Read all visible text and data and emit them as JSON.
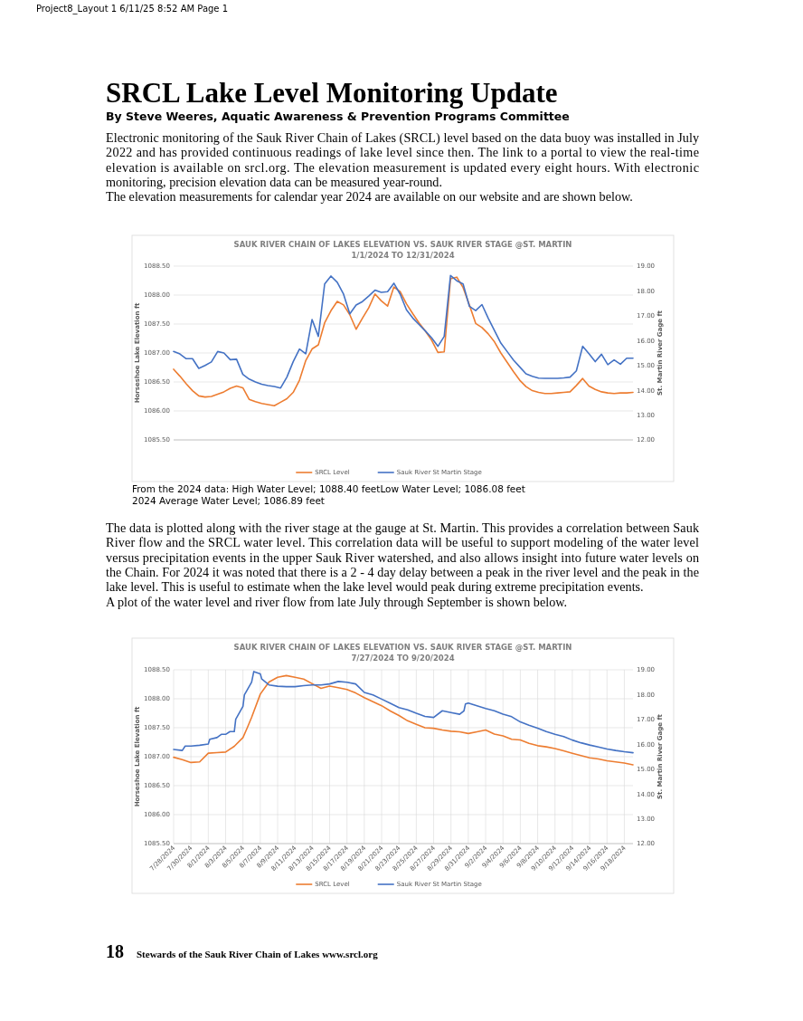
{
  "chart_data": [
    {
      "type": "other",
      "annotations": [
        "Project8_Layout 1 6/11/25 8:52 AM Page 1"
      ]
    },
    {
      "type": "other",
      "title": "SRCL Lake Level Monitoring Update",
      "subtitle": "By Steve Weeres, Aquatic Awareness & Prevention Programs Committee",
      "annotations": [
        "Electronic monitoring of the Sauk River Chain of Lakes (SRCL) level based on the data buoy was installed in July 2022 and has provided continuous readings of lake level since then. The link to a portal to view the real-time elevation is available on srcl.org. The elevation measurement is updated every eight hours. With electronic monitoring, precision elevation data can be measured year-round.",
        "The elevation measurements for calendar year 2024 are available on our website and are shown below."
      ]
    },
    {
      "type": "line",
      "title": "SAUK RIVER CHAIN OF LAKES ELEVATION VS. SAUK RIVER STAGE @ST. MARTIN",
      "subtitle": "1/1/2024 TO 12/31/2024",
      "ylabel": "Horseshoe Lake Elevation ft",
      "y2label": "St. Martin River Gage ft",
      "ylim": [
        1085.5,
        1088.5
      ],
      "yticks": [
        {
          "value": 1085.5,
          "label": "1085.50"
        },
        {
          "value": 1086,
          "label": "1086.00"
        },
        {
          "value": 1086.5,
          "label": "1086.50"
        },
        {
          "value": 1087,
          "label": "1087.00"
        },
        {
          "value": 1087.5,
          "label": "1087.50"
        },
        {
          "value": 1088,
          "label": "1088.00"
        },
        {
          "value": 1088.5,
          "label": "1088.50"
        }
      ],
      "y2lim": [
        12,
        19
      ],
      "y2ticks": [
        {
          "value": 12,
          "label": "12.00"
        },
        {
          "value": 13,
          "label": "13.00"
        },
        {
          "value": 14,
          "label": "14.00"
        },
        {
          "value": 15,
          "label": "15.00"
        },
        {
          "value": 16,
          "label": "16.00"
        },
        {
          "value": 17,
          "label": "17.00"
        },
        {
          "value": 18,
          "label": "18.00"
        },
        {
          "value": 19,
          "label": "19.00"
        }
      ],
      "grid": "y",
      "legend": "bottom",
      "annotations": [
        "From the 2024 data: High Water Level; 1088.40 feetLow Water Level; 1086.08 feet",
        "2024 Average Water Level; 1086.89 feet"
      ],
      "categories": [
        null,
        null,
        null,
        null,
        null,
        null,
        null,
        null,
        null,
        null,
        null,
        null,
        null,
        null,
        null,
        null,
        null,
        null,
        null,
        null,
        null,
        null,
        null,
        null,
        null,
        null,
        null,
        null,
        null,
        null,
        null,
        null,
        null,
        null,
        null,
        null,
        null,
        null,
        null,
        null,
        null,
        null,
        null,
        null,
        null,
        null,
        null,
        null,
        null,
        null,
        null,
        null,
        null,
        null,
        null,
        null,
        null,
        null,
        null,
        null,
        null,
        null,
        null,
        null,
        null,
        null,
        null,
        null,
        null,
        null,
        null,
        null,
        null,
        null
      ],
      "series": [
        {
          "name": "SRCL Level",
          "color": "#ed7d31",
          "values": [
            1086.72,
            1086.6,
            1086.47,
            1086.35,
            1086.26,
            1086.24,
            1086.25,
            1086.29,
            1086.33,
            1086.39,
            1086.43,
            1086.4,
            1086.2,
            1086.16,
            1086.13,
            1086.11,
            1086.09,
            1086.15,
            1086.21,
            1086.32,
            1086.53,
            1086.87,
            1087.07,
            1087.14,
            1087.52,
            1087.73,
            1087.89,
            1087.83,
            1087.66,
            1087.41,
            1087.6,
            1087.78,
            1088.02,
            1087.9,
            1087.81,
            1088.14,
            1088.06,
            1087.85,
            1087.68,
            1087.52,
            1087.38,
            1087.22,
            1087.01,
            1087.02,
            1088.28,
            1088.31,
            1088.13,
            1087.83,
            1087.51,
            1087.44,
            1087.33,
            1087.19,
            1087,
            1086.84,
            1086.68,
            1086.53,
            1086.42,
            1086.35,
            1086.32,
            1086.3,
            1086.3,
            1086.31,
            1086.32,
            1086.33,
            1086.44,
            1086.56,
            1086.43,
            1086.37,
            1086.33,
            1086.31,
            1086.3,
            1086.31,
            1086.31,
            1086.32
          ]
        },
        {
          "name": "Sauk River St Martin Stage",
          "color": "#4472c4",
          "axis": "y2",
          "values": [
            15.56,
            15.46,
            15.27,
            15.27,
            14.88,
            15,
            15.14,
            15.56,
            15.5,
            15.23,
            15.25,
            14.64,
            14.45,
            14.33,
            14.24,
            14.19,
            14.15,
            14.09,
            14.53,
            15.15,
            15.66,
            15.47,
            16.85,
            16.17,
            18.28,
            18.6,
            18.35,
            17.87,
            17.08,
            17.43,
            17.57,
            17.79,
            18.03,
            17.94,
            17.97,
            18.31,
            17.87,
            17.24,
            16.91,
            16.65,
            16.39,
            16.11,
            15.77,
            16.17,
            18.62,
            18.41,
            18.28,
            17.38,
            17.21,
            17.45,
            16.9,
            16.4,
            15.9,
            15.56,
            15.22,
            14.94,
            14.66,
            14.56,
            14.49,
            14.48,
            14.48,
            14.48,
            14.5,
            14.53,
            14.78,
            15.77,
            15.47,
            15.15,
            15.45,
            15.03,
            15.22,
            15.05,
            15.29,
            15.29
          ]
        }
      ]
    },
    {
      "type": "other",
      "annotations": [
        "The data is plotted along with the river stage at the gauge at St. Martin. This provides a correlation between Sauk River flow and the SRCL water level. This correlation data will be useful to support modeling of the water level versus precipitation events in the upper Sauk River watershed, and also allows insight into future water levels on the Chain. For 2024 it was noted that there is a 2 - 4 day delay between a peak in the river level and the peak in the lake level. This is useful to estimate when the lake level would peak during extreme precipitation events.",
        "A plot of the water level and river flow from late July through September is shown below."
      ]
    },
    {
      "type": "line",
      "title": "SAUK RIVER CHAIN OF LAKES ELEVATION VS. SAUK RIVER STAGE @ST. MARTIN",
      "subtitle": "7/27/2024 TO 9/20/2024",
      "ylabel": "Horseshoe Lake Elevation ft",
      "y2label": "St. Martin River Gage ft",
      "xlim": [
        "2024-07-28",
        "2024-09-19"
      ],
      "xticks": [
        {
          "value": "2024-07-28",
          "label": "7/28/2024"
        },
        {
          "value": "2024-07-30",
          "label": "7/30/2024"
        },
        {
          "value": "2024-08-01",
          "label": "8/1/2024"
        },
        {
          "value": "2024-08-03",
          "label": "8/3/2024"
        },
        {
          "value": "2024-08-05",
          "label": "8/5/2024"
        },
        {
          "value": "2024-08-07",
          "label": "8/7/2024"
        },
        {
          "value": "2024-08-09",
          "label": "8/9/2024"
        },
        {
          "value": "2024-08-11",
          "label": "8/11/2024"
        },
        {
          "value": "2024-08-13",
          "label": "8/13/2024"
        },
        {
          "value": "2024-08-15",
          "label": "8/15/2024"
        },
        {
          "value": "2024-08-17",
          "label": "8/17/2024"
        },
        {
          "value": "2024-08-19",
          "label": "8/19/2024"
        },
        {
          "value": "2024-08-21",
          "label": "8/21/2024"
        },
        {
          "value": "2024-08-23",
          "label": "8/23/2024"
        },
        {
          "value": "2024-08-25",
          "label": "8/25/2024"
        },
        {
          "value": "2024-08-27",
          "label": "8/27/2024"
        },
        {
          "value": "2024-08-29",
          "label": "8/29/2024"
        },
        {
          "value": "2024-08-31",
          "label": "8/31/2024"
        },
        {
          "value": "2024-09-02",
          "label": "9/2/2024"
        },
        {
          "value": "2024-09-04",
          "label": "9/4/2024"
        },
        {
          "value": "2024-09-06",
          "label": "9/6/2024"
        },
        {
          "value": "2024-09-08",
          "label": "9/8/2024"
        },
        {
          "value": "2024-09-10",
          "label": "9/10/2024"
        },
        {
          "value": "2024-09-12",
          "label": "9/12/2024"
        },
        {
          "value": "2024-09-14",
          "label": "9/14/2024"
        },
        {
          "value": "2024-09-16",
          "label": "9/16/2024"
        },
        {
          "value": "2024-09-18",
          "label": "9/18/2024"
        }
      ],
      "ylim": [
        1085.5,
        1088.5
      ],
      "yticks": [
        {
          "value": 1085.5,
          "label": "1085.50"
        },
        {
          "value": 1086,
          "label": "1086.00"
        },
        {
          "value": 1086.5,
          "label": "1086.50"
        },
        {
          "value": 1087,
          "label": "1087.00"
        },
        {
          "value": 1087.5,
          "label": "1087.50"
        },
        {
          "value": 1088,
          "label": "1088.00"
        },
        {
          "value": 1088.5,
          "label": "1088.50"
        }
      ],
      "y2lim": [
        12,
        19
      ],
      "y2ticks": [
        {
          "value": 12,
          "label": "12.00"
        },
        {
          "value": 13,
          "label": "13.00"
        },
        {
          "value": 14,
          "label": "14.00"
        },
        {
          "value": 15,
          "label": "15.00"
        },
        {
          "value": 16,
          "label": "16.00"
        },
        {
          "value": 17,
          "label": "17.00"
        },
        {
          "value": 18,
          "label": "18.00"
        },
        {
          "value": 19,
          "label": "19.00"
        }
      ],
      "grid": true,
      "legend": "bottom",
      "series": [
        {
          "name": "SRCL Level",
          "color": "#ed7d31",
          "x": [
            "2024-07-28",
            "2024-07-29",
            "2024-07-30",
            "2024-07-31",
            "2024-08-01",
            "2024-08-02",
            "2024-08-03",
            "2024-08-04",
            "2024-08-05",
            "2024-08-05T12:00",
            "2024-08-06",
            "2024-08-07",
            "2024-08-08",
            "2024-08-09",
            "2024-08-10",
            "2024-08-11",
            "2024-08-12",
            "2024-08-13",
            "2024-08-14",
            "2024-08-15",
            "2024-08-16",
            "2024-08-17",
            "2024-08-18",
            "2024-08-19",
            "2024-08-20",
            "2024-08-21",
            "2024-08-22",
            "2024-08-23",
            "2024-08-24",
            "2024-08-25",
            "2024-08-26",
            "2024-08-27",
            "2024-08-28",
            "2024-08-29",
            "2024-08-30",
            "2024-08-31",
            "2024-09-01",
            "2024-09-02",
            "2024-09-03",
            "2024-09-04",
            "2024-09-05",
            "2024-09-06",
            "2024-09-07",
            "2024-09-08",
            "2024-09-09",
            "2024-09-10",
            "2024-09-11",
            "2024-09-12",
            "2024-09-13",
            "2024-09-14",
            "2024-09-15",
            "2024-09-16",
            "2024-09-17",
            "2024-09-18",
            "2024-09-19"
          ],
          "values": [
            1086.99,
            1086.95,
            1086.9,
            1086.91,
            1087.06,
            1087.07,
            1087.08,
            1087.18,
            1087.33,
            1087.5,
            1087.68,
            1088.08,
            1088.29,
            1088.37,
            1088.4,
            1088.37,
            1088.34,
            1088.26,
            1088.18,
            1088.22,
            1088.19,
            1088.16,
            1088.1,
            1088.02,
            1087.95,
            1087.88,
            1087.79,
            1087.71,
            1087.62,
            1087.56,
            1087.5,
            1087.49,
            1087.46,
            1087.44,
            1087.43,
            1087.4,
            1087.43,
            1087.46,
            1087.39,
            1087.36,
            1087.3,
            1087.29,
            1087.23,
            1087.19,
            1087.17,
            1087.14,
            1087.1,
            1087.06,
            1087.02,
            1086.98,
            1086.96,
            1086.93,
            1086.91,
            1086.89,
            1086.86
          ]
        },
        {
          "name": "Sauk River St Martin Stage",
          "color": "#4472c4",
          "axis": "y2",
          "x": [
            "2024-07-28",
            "2024-07-29",
            "2024-07-29T08:00",
            "2024-07-30",
            "2024-07-31",
            "2024-08-01",
            "2024-08-01T04:00",
            "2024-08-02",
            "2024-08-02T12:00",
            "2024-08-03",
            "2024-08-03T12:00",
            "2024-08-04",
            "2024-08-04T04:00",
            "2024-08-05",
            "2024-08-05T04:00",
            "2024-08-06",
            "2024-08-06T06:00",
            "2024-08-07",
            "2024-08-07T04:00",
            "2024-08-08",
            "2024-08-09",
            "2024-08-10",
            "2024-08-11",
            "2024-08-12",
            "2024-08-13",
            "2024-08-14",
            "2024-08-15",
            "2024-08-16",
            "2024-08-17",
            "2024-08-18",
            "2024-08-19",
            "2024-08-20",
            "2024-08-21",
            "2024-08-22",
            "2024-08-23",
            "2024-08-24",
            "2024-08-25",
            "2024-08-26",
            "2024-08-27",
            "2024-08-28",
            "2024-08-29",
            "2024-08-30",
            "2024-08-30T12:00",
            "2024-08-30T16:00",
            "2024-08-31",
            "2024-09-01",
            "2024-09-02",
            "2024-09-03",
            "2024-09-04",
            "2024-09-05",
            "2024-09-06",
            "2024-09-07",
            "2024-09-08",
            "2024-09-09",
            "2024-09-10",
            "2024-09-11",
            "2024-09-12",
            "2024-09-13",
            "2024-09-14",
            "2024-09-15",
            "2024-09-16",
            "2024-09-17",
            "2024-09-18",
            "2024-09-19"
          ],
          "values": [
            15.79,
            15.75,
            15.93,
            15.93,
            15.96,
            16.01,
            16.2,
            16.27,
            16.4,
            16.4,
            16.51,
            16.51,
            17.01,
            17.53,
            17.99,
            18.5,
            18.93,
            18.84,
            18.63,
            18.39,
            18.34,
            18.32,
            18.32,
            18.36,
            18.39,
            18.39,
            18.43,
            18.53,
            18.5,
            18.43,
            18.09,
            17.99,
            17.82,
            17.65,
            17.48,
            17.39,
            17.25,
            17.12,
            17.08,
            17.35,
            17.28,
            17.21,
            17.35,
            17.62,
            17.66,
            17.55,
            17.44,
            17.35,
            17.21,
            17.11,
            16.9,
            16.77,
            16.65,
            16.51,
            16.4,
            16.31,
            16.17,
            16.06,
            15.97,
            15.89,
            15.81,
            15.75,
            15.7,
            15.66
          ]
        }
      ]
    },
    {
      "type": "other",
      "annotations": [
        "18",
        "Stewards of the Sauk River Chain of Lakes  www.srcl.org"
      ]
    }
  ]
}
